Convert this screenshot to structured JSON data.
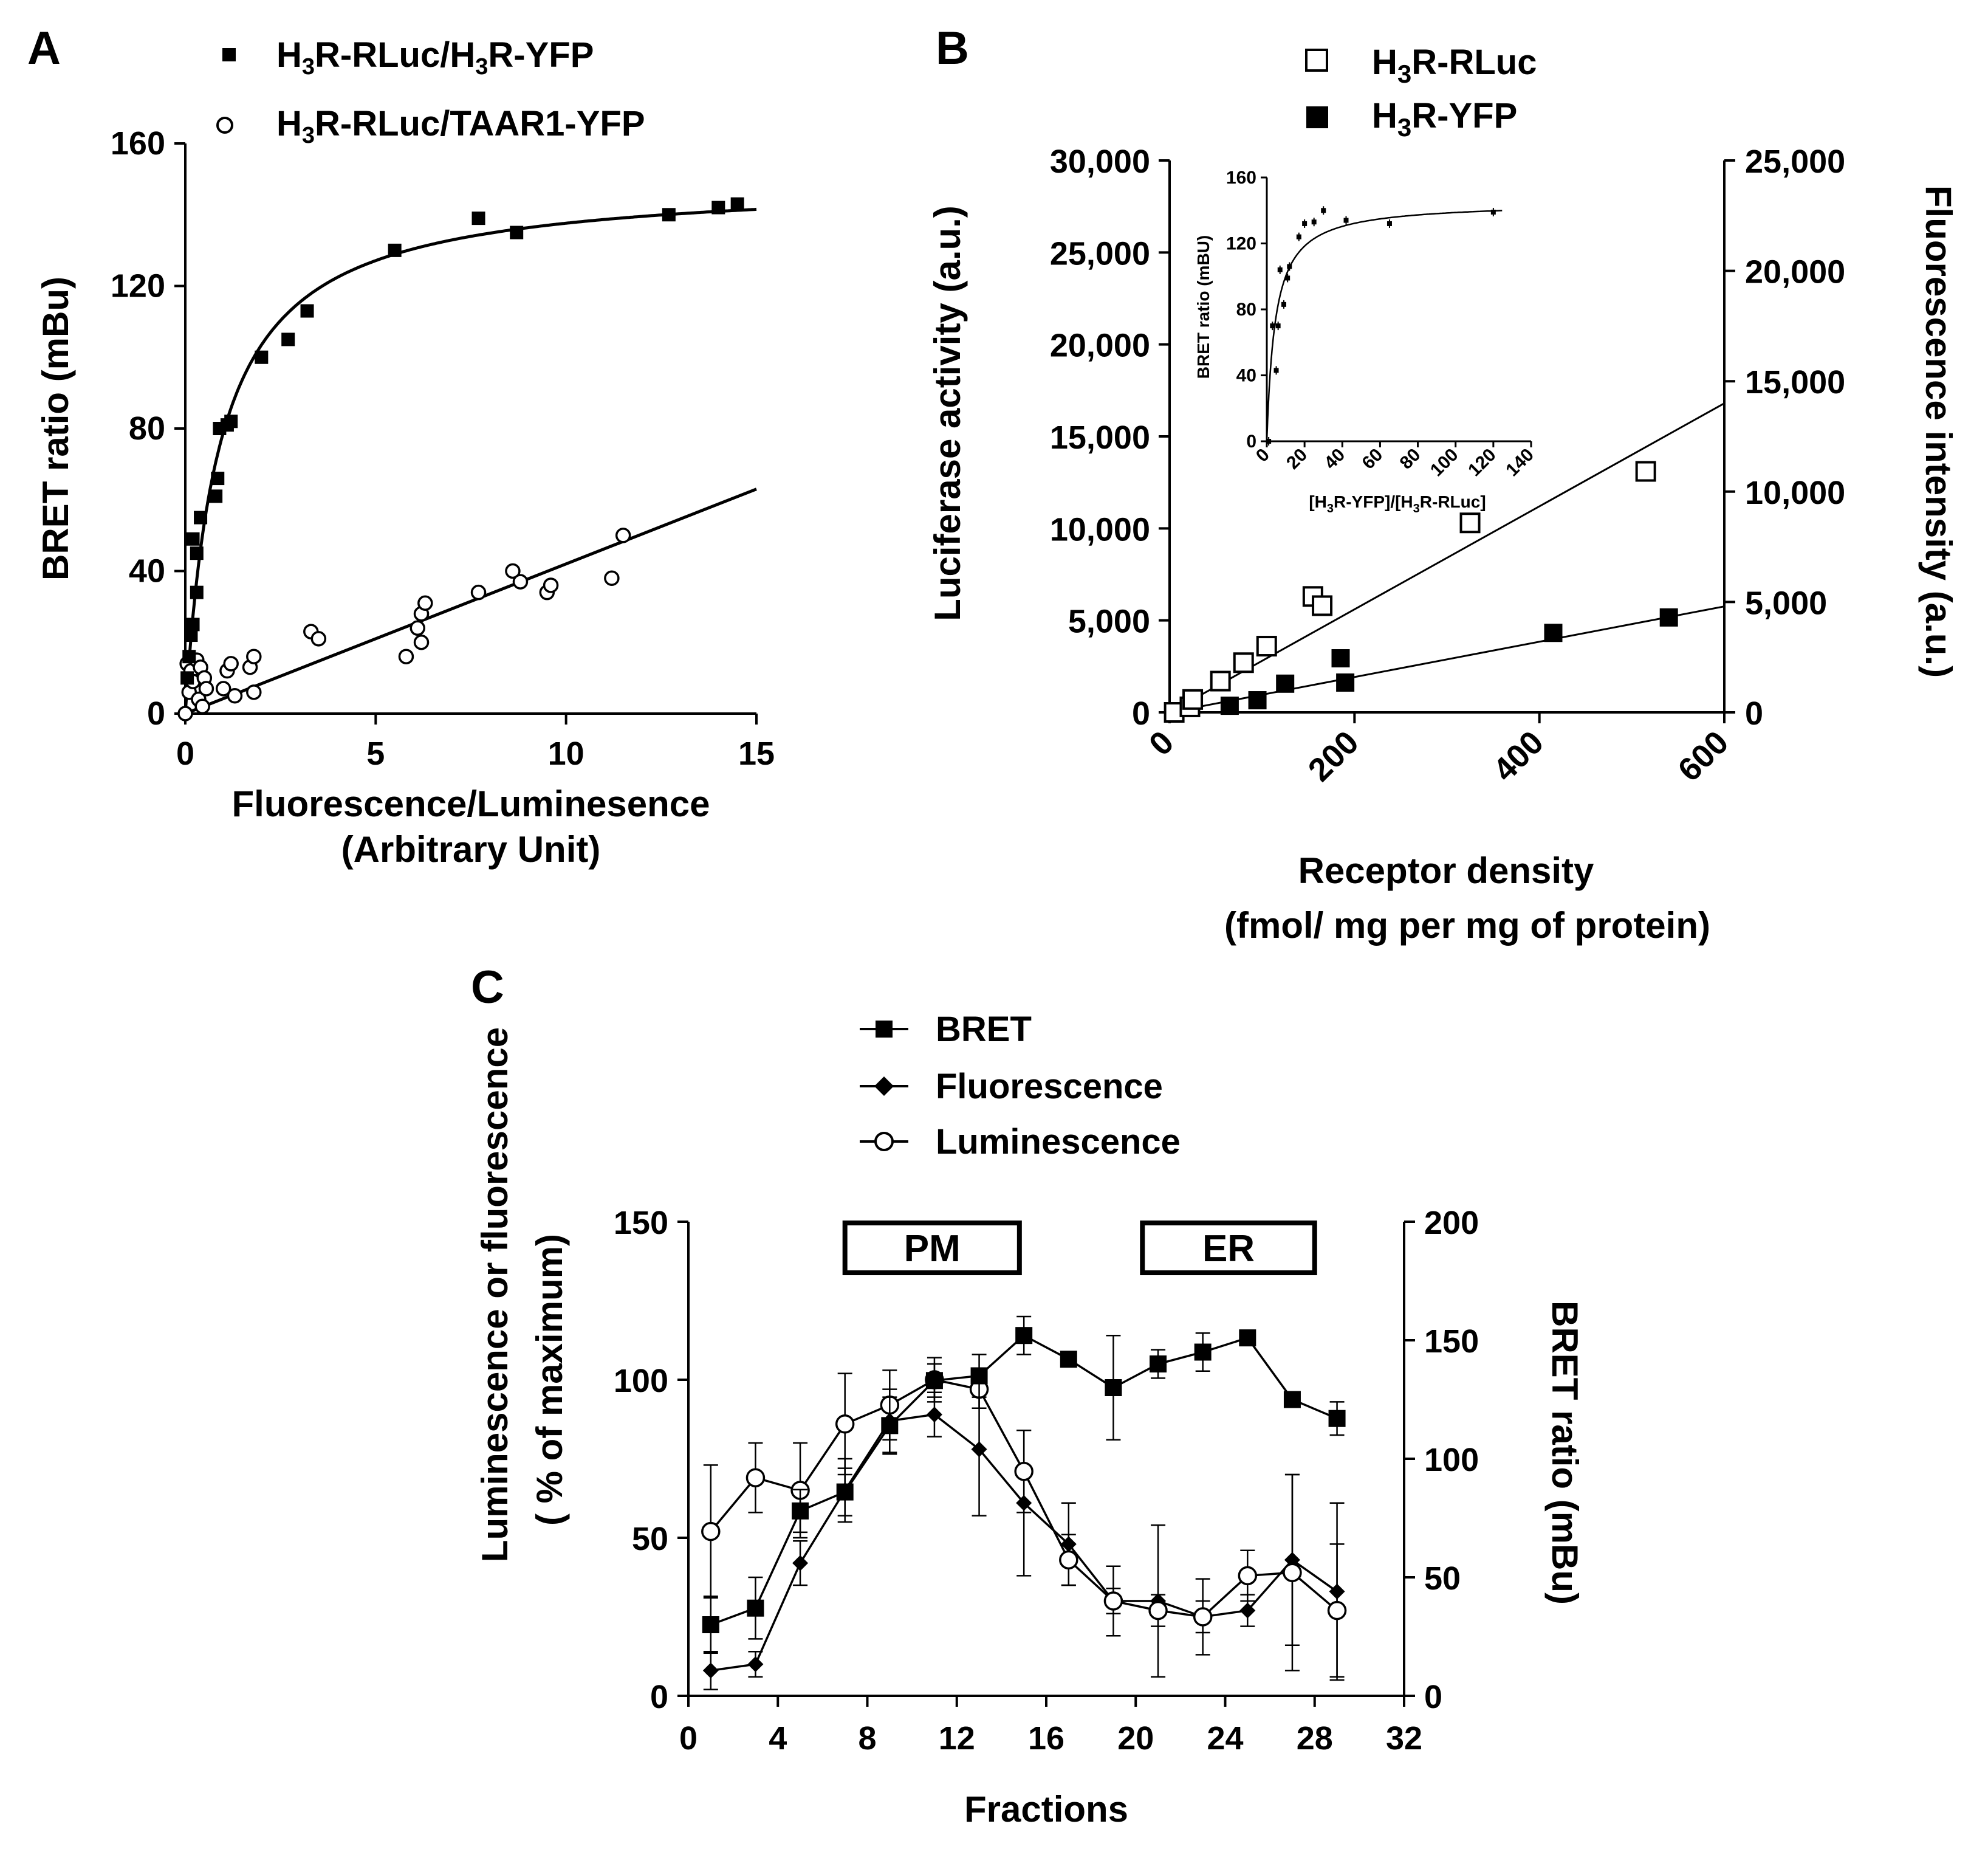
{
  "figure": "three-panel BRET figure",
  "chart_data": [
    {
      "panel": "A",
      "type": "scatter",
      "xlabel": "Fluorescence/Luminesence",
      "xlabel2": "(Arbitrary Unit)",
      "ylabel": "BRET  ratio (mBu)",
      "xlim": [
        0,
        15
      ],
      "ylim": [
        0,
        160
      ],
      "xticks": [
        0,
        5,
        10,
        15
      ],
      "yticks": [
        0,
        40,
        80,
        120,
        160
      ],
      "legend_position": "top",
      "series": [
        {
          "name": "H3R-RLuc/H3R-YFP",
          "legend_label": {
            "pre": "H",
            "sub1": "3",
            "mid": "R-RLuc/H",
            "sub2": "3",
            "post": "R-YFP"
          },
          "marker": "filled-square",
          "fit": "saturation",
          "fit_bmax": 150,
          "fit_k50": 0.9,
          "points": [
            {
              "x": 0.05,
              "y": 10
            },
            {
              "x": 0.1,
              "y": 16
            },
            {
              "x": 0.15,
              "y": 22
            },
            {
              "x": 0.2,
              "y": 25
            },
            {
              "x": 0.2,
              "y": 49
            },
            {
              "x": 0.3,
              "y": 34
            },
            {
              "x": 0.3,
              "y": 45
            },
            {
              "x": 0.4,
              "y": 55
            },
            {
              "x": 0.8,
              "y": 61
            },
            {
              "x": 0.85,
              "y": 66
            },
            {
              "x": 0.9,
              "y": 80
            },
            {
              "x": 1.1,
              "y": 81
            },
            {
              "x": 1.2,
              "y": 82
            },
            {
              "x": 2.0,
              "y": 100
            },
            {
              "x": 2.7,
              "y": 105
            },
            {
              "x": 3.2,
              "y": 113
            },
            {
              "x": 5.5,
              "y": 130
            },
            {
              "x": 7.7,
              "y": 139
            },
            {
              "x": 8.7,
              "y": 135
            },
            {
              "x": 12.7,
              "y": 140
            },
            {
              "x": 14.0,
              "y": 142
            },
            {
              "x": 14.5,
              "y": 143
            }
          ]
        },
        {
          "name": "H3R-RLuc/TAAR1-YFP",
          "legend_label": {
            "pre": "H",
            "sub1": "3",
            "mid": "R-RLuc/TAAR1-YFP",
            "sub2": "",
            "post": ""
          },
          "marker": "open-circle",
          "fit": "linear",
          "fit_slope": 4.2,
          "fit_intercept": 0,
          "points": [
            {
              "x": 0.0,
              "y": 0
            },
            {
              "x": 0.05,
              "y": 14
            },
            {
              "x": 0.1,
              "y": 6
            },
            {
              "x": 0.15,
              "y": 12
            },
            {
              "x": 0.2,
              "y": 9
            },
            {
              "x": 0.3,
              "y": 15
            },
            {
              "x": 0.35,
              "y": 4
            },
            {
              "x": 0.4,
              "y": 13
            },
            {
              "x": 0.45,
              "y": 2
            },
            {
              "x": 0.5,
              "y": 10
            },
            {
              "x": 0.55,
              "y": 7
            },
            {
              "x": 1.0,
              "y": 7
            },
            {
              "x": 1.1,
              "y": 12
            },
            {
              "x": 1.2,
              "y": 14
            },
            {
              "x": 1.3,
              "y": 5
            },
            {
              "x": 1.7,
              "y": 13
            },
            {
              "x": 1.8,
              "y": 16
            },
            {
              "x": 1.8,
              "y": 6
            },
            {
              "x": 3.3,
              "y": 23
            },
            {
              "x": 3.5,
              "y": 21
            },
            {
              "x": 5.8,
              "y": 16
            },
            {
              "x": 6.1,
              "y": 24
            },
            {
              "x": 6.2,
              "y": 28
            },
            {
              "x": 6.3,
              "y": 31
            },
            {
              "x": 6.2,
              "y": 20
            },
            {
              "x": 7.7,
              "y": 34
            },
            {
              "x": 8.6,
              "y": 40
            },
            {
              "x": 8.8,
              "y": 37
            },
            {
              "x": 9.5,
              "y": 34
            },
            {
              "x": 9.6,
              "y": 36
            },
            {
              "x": 11.2,
              "y": 38
            },
            {
              "x": 11.5,
              "y": 50
            }
          ]
        }
      ]
    },
    {
      "panel": "B",
      "type": "scatter",
      "xlabel": "Receptor density",
      "xlabel2": "(fmol/ mg per mg of protein)",
      "ylabel_left": "Luciferase activity (a.u.)",
      "ylabel_right": "Fluorescence intensity (a.u.)",
      "xlim": [
        0,
        600
      ],
      "ylim_left": [
        0,
        30000
      ],
      "ylim_right": [
        0,
        25000
      ],
      "xticks": [
        "0",
        "200",
        "400",
        "600"
      ],
      "yticks_left": [
        "0",
        "5,000",
        "10,000",
        "15,000",
        "20,000",
        "25,000",
        "30,000"
      ],
      "yticks_right": [
        "0",
        "5,000",
        "10,000",
        "15,000",
        "20,000",
        "25,000"
      ],
      "legend_position": "top",
      "series": [
        {
          "name": "H3R-RLuc",
          "legend_label": {
            "pre": "H",
            "sub1": "3",
            "post": "R-RLuc"
          },
          "marker": "open-square",
          "axis": "left",
          "fit": "linear",
          "fit_line": [
            [
              0,
              0
            ],
            [
              600,
              16800
            ]
          ],
          "points": [
            {
              "x": 5,
              "y": 0
            },
            {
              "x": 22,
              "y": 300
            },
            {
              "x": 25,
              "y": 700
            },
            {
              "x": 55,
              "y": 1700
            },
            {
              "x": 80,
              "y": 2700
            },
            {
              "x": 105,
              "y": 3600
            },
            {
              "x": 155,
              "y": 6300
            },
            {
              "x": 165,
              "y": 5800
            },
            {
              "x": 325,
              "y": 10300
            },
            {
              "x": 515,
              "y": 13100
            }
          ]
        },
        {
          "name": "H3R-YFP",
          "legend_label": {
            "pre": "H",
            "sub1": "3",
            "post": "R-YFP"
          },
          "marker": "filled-square",
          "axis": "right",
          "fit": "linear",
          "fit_line": [
            [
              0,
              0
            ],
            [
              600,
              4800
            ]
          ],
          "points": [
            {
              "x": 65,
              "y": 300
            },
            {
              "x": 95,
              "y": 550
            },
            {
              "x": 125,
              "y": 1300
            },
            {
              "x": 185,
              "y": 2450
            },
            {
              "x": 190,
              "y": 1350
            },
            {
              "x": 415,
              "y": 3600
            },
            {
              "x": 540,
              "y": 4300
            }
          ]
        }
      ],
      "inset": {
        "type": "scatter",
        "xlabel": "[H3R-YFP]/[H3R-RLuc]",
        "xlabel_parts": {
          "a": "[H",
          "s1": "3",
          "b": "R-YFP]/[H",
          "s2": "3",
          "c": "R-RLuc]"
        },
        "ylabel": "BRET ratio (mBU)",
        "xlim": [
          0,
          140
        ],
        "ylim": [
          0,
          160
        ],
        "xticks": [
          0,
          20,
          40,
          60,
          80,
          100,
          120,
          140
        ],
        "yticks": [
          0,
          40,
          80,
          120,
          160
        ],
        "fit_bmax": 145,
        "fit_k50": 4.5,
        "points": [
          {
            "x": 1,
            "y": 0
          },
          {
            "x": 3,
            "y": 70
          },
          {
            "x": 5,
            "y": 43
          },
          {
            "x": 6,
            "y": 70
          },
          {
            "x": 7,
            "y": 104
          },
          {
            "x": 9,
            "y": 83
          },
          {
            "x": 11,
            "y": 99
          },
          {
            "x": 12,
            "y": 106
          },
          {
            "x": 17,
            "y": 124
          },
          {
            "x": 20,
            "y": 132
          },
          {
            "x": 25,
            "y": 133
          },
          {
            "x": 30,
            "y": 140
          },
          {
            "x": 42,
            "y": 134
          },
          {
            "x": 65,
            "y": 132
          },
          {
            "x": 120,
            "y": 139
          }
        ]
      }
    },
    {
      "panel": "C",
      "type": "line",
      "xlabel": "Fractions",
      "ylabel_left": "Luminescence or fluorescence",
      "ylabel_left2": "( % of maximum)",
      "ylabel_right": "BRET ratio (mBu)",
      "xlim": [
        0,
        32
      ],
      "ylim_left": [
        0,
        150
      ],
      "ylim_right": [
        0,
        200
      ],
      "xticks": [
        0,
        4,
        8,
        12,
        16,
        20,
        24,
        28,
        32
      ],
      "yticks_left": [
        0,
        50,
        100,
        150
      ],
      "yticks_right": [
        0,
        50,
        100,
        150,
        200
      ],
      "annotations": [
        {
          "label": "PM",
          "x_start": 7,
          "x_end": 14.8
        },
        {
          "label": "ER",
          "x_start": 20.3,
          "x_end": 28
        }
      ],
      "legend_position": "top-left",
      "x": [
        1,
        3,
        5,
        7,
        9,
        11,
        13,
        15,
        17,
        19,
        21,
        23,
        25,
        27,
        29
      ],
      "series": [
        {
          "name": "BRET",
          "marker": "filled-square",
          "axis": "right",
          "values": [
            30,
            37,
            78,
            86,
            114,
            133,
            135,
            152,
            142,
            130,
            140,
            145,
            151,
            125,
            117
          ],
          "errors": [
            12,
            13,
            9,
            10,
            12,
            7,
            9,
            8,
            3,
            22,
            6,
            8,
            0,
            3,
            7
          ]
        },
        {
          "name": "Fluorescence",
          "marker": "filled-diamond",
          "axis": "left",
          "values": [
            8,
            10,
            42,
            65,
            87,
            89,
            78,
            61,
            48,
            30,
            30,
            25,
            27,
            43,
            33
          ],
          "errors": [
            6,
            4,
            7,
            10,
            10,
            7,
            21,
            23,
            13,
            11,
            24,
            12,
            5,
            27,
            28
          ]
        },
        {
          "name": "Luminescence",
          "marker": "open-circle",
          "axis": "left",
          "values": [
            52,
            69,
            65,
            86,
            92,
            100,
            97,
            71,
            43,
            30,
            27,
            25,
            38,
            39,
            27
          ],
          "errors": [
            21,
            11,
            15,
            16,
            11,
            7,
            6,
            13,
            8,
            4,
            5,
            5,
            8,
            31,
            21
          ]
        }
      ]
    }
  ]
}
